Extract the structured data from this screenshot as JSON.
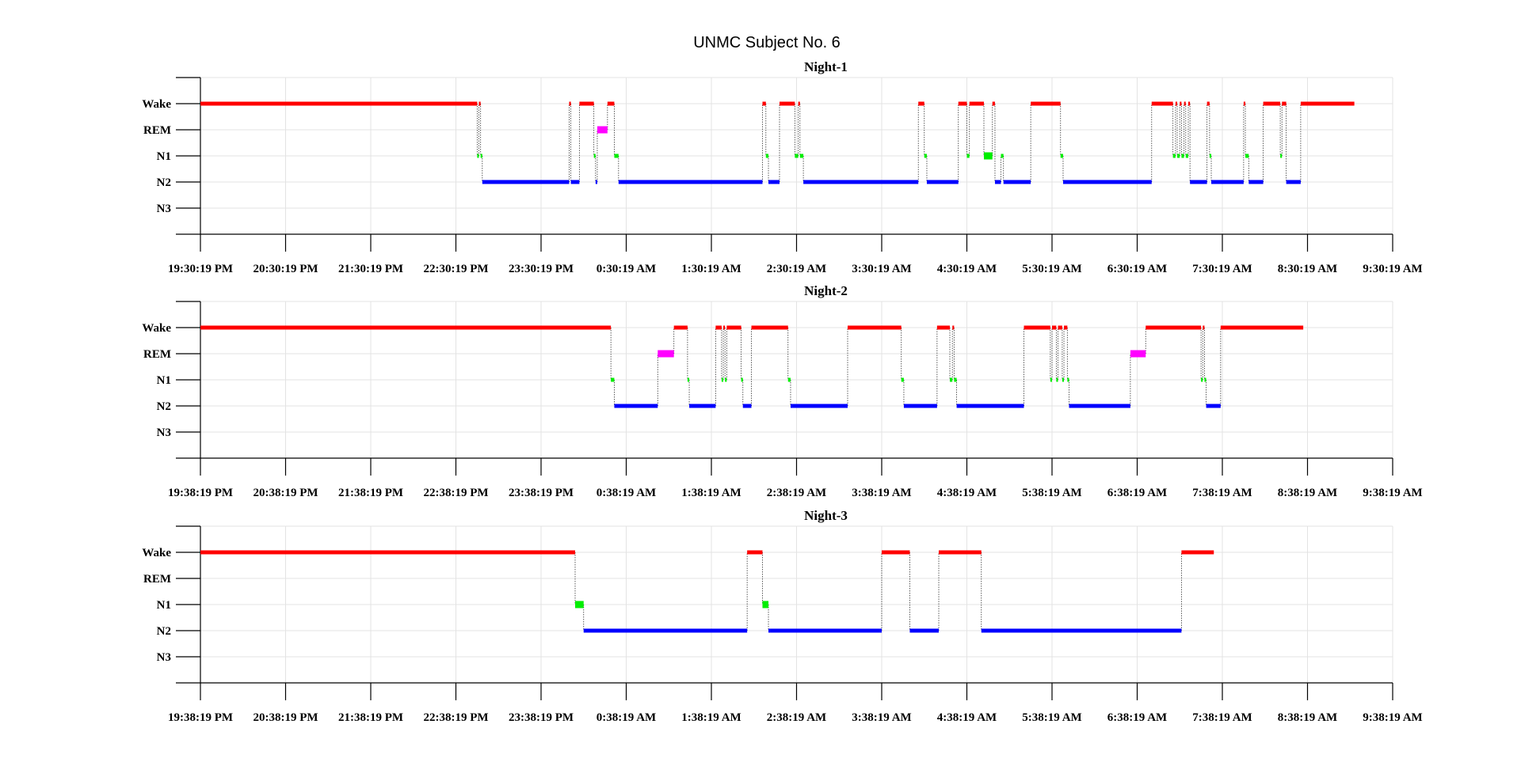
{
  "figure": {
    "title": "UNMC Subject No. 6"
  },
  "colors": {
    "Wake": "#ff0000",
    "REM": "#ff00ff",
    "N1": "#00ee00",
    "N2": "#0000ff",
    "N3": "#000000"
  },
  "chart_data": [
    {
      "type": "line",
      "title": "Night-1",
      "y_categories": [
        "Wake",
        "REM",
        "N1",
        "N2",
        "N3"
      ],
      "x_unit": "clock time (hours from 19:30:19 PM)",
      "xlim": [
        0,
        14
      ],
      "xticks": [
        "19:30:19 PM",
        "20:30:19 PM",
        "21:30:19 PM",
        "22:30:19 PM",
        "23:30:19 PM",
        "0:30:19 AM",
        "1:30:19 AM",
        "2:30:19 AM",
        "3:30:19 AM",
        "4:30:19 AM",
        "5:30:19 AM",
        "6:30:19 AM",
        "7:30:19 AM",
        "8:30:19 AM",
        "9:30:19 AM"
      ],
      "segments": [
        {
          "stage": "Wake",
          "start": 0,
          "end": 3.25
        },
        {
          "stage": "N1",
          "start": 3.25,
          "end": 3.27
        },
        {
          "stage": "Wake",
          "start": 3.27,
          "end": 3.29
        },
        {
          "stage": "N1",
          "start": 3.29,
          "end": 3.31
        },
        {
          "stage": "N2",
          "start": 3.31,
          "end": 4.33
        },
        {
          "stage": "Wake",
          "start": 4.33,
          "end": 4.35
        },
        {
          "stage": "N2",
          "start": 4.35,
          "end": 4.45
        },
        {
          "stage": "Wake",
          "start": 4.45,
          "end": 4.62
        },
        {
          "stage": "N1",
          "start": 4.62,
          "end": 4.64
        },
        {
          "stage": "N2",
          "start": 4.64,
          "end": 4.66
        },
        {
          "stage": "REM",
          "start": 4.66,
          "end": 4.78
        },
        {
          "stage": "Wake",
          "start": 4.78,
          "end": 4.86
        },
        {
          "stage": "N1",
          "start": 4.86,
          "end": 4.91
        },
        {
          "stage": "N2",
          "start": 4.91,
          "end": 6.6
        },
        {
          "stage": "Wake",
          "start": 6.6,
          "end": 6.64
        },
        {
          "stage": "N1",
          "start": 6.64,
          "end": 6.67
        },
        {
          "stage": "N2",
          "start": 6.67,
          "end": 6.8
        },
        {
          "stage": "Wake",
          "start": 6.8,
          "end": 6.98
        },
        {
          "stage": "N1",
          "start": 6.98,
          "end": 7.02
        },
        {
          "stage": "Wake",
          "start": 7.02,
          "end": 7.04
        },
        {
          "stage": "N1",
          "start": 7.04,
          "end": 7.08
        },
        {
          "stage": "N2",
          "start": 7.08,
          "end": 8.43
        },
        {
          "stage": "Wake",
          "start": 8.43,
          "end": 8.5
        },
        {
          "stage": "N1",
          "start": 8.5,
          "end": 8.53
        },
        {
          "stage": "N2",
          "start": 8.53,
          "end": 8.9
        },
        {
          "stage": "Wake",
          "start": 8.9,
          "end": 9.0
        },
        {
          "stage": "N1",
          "start": 9.0,
          "end": 9.03
        },
        {
          "stage": "Wake",
          "start": 9.03,
          "end": 9.2
        },
        {
          "stage": "N1",
          "start": 9.2,
          "end": 9.3
        },
        {
          "stage": "Wake",
          "start": 9.3,
          "end": 9.33
        },
        {
          "stage": "N2",
          "start": 9.33,
          "end": 9.4
        },
        {
          "stage": "N1",
          "start": 9.4,
          "end": 9.43
        },
        {
          "stage": "N2",
          "start": 9.43,
          "end": 9.75
        },
        {
          "stage": "Wake",
          "start": 9.75,
          "end": 10.1
        },
        {
          "stage": "N1",
          "start": 10.1,
          "end": 10.13
        },
        {
          "stage": "N2",
          "start": 10.13,
          "end": 11.17
        },
        {
          "stage": "Wake",
          "start": 11.17,
          "end": 11.42
        },
        {
          "stage": "N1",
          "start": 11.42,
          "end": 11.45
        },
        {
          "stage": "Wake",
          "start": 11.45,
          "end": 11.47
        },
        {
          "stage": "N1",
          "start": 11.47,
          "end": 11.5
        },
        {
          "stage": "Wake",
          "start": 11.5,
          "end": 11.52
        },
        {
          "stage": "N1",
          "start": 11.52,
          "end": 11.55
        },
        {
          "stage": "Wake",
          "start": 11.55,
          "end": 11.57
        },
        {
          "stage": "N1",
          "start": 11.57,
          "end": 11.6
        },
        {
          "stage": "Wake",
          "start": 11.6,
          "end": 11.62
        },
        {
          "stage": "N2",
          "start": 11.62,
          "end": 11.82
        },
        {
          "stage": "Wake",
          "start": 11.82,
          "end": 11.85
        },
        {
          "stage": "N1",
          "start": 11.85,
          "end": 11.87
        },
        {
          "stage": "N2",
          "start": 11.87,
          "end": 12.25
        },
        {
          "stage": "Wake",
          "start": 12.25,
          "end": 12.27
        },
        {
          "stage": "N1",
          "start": 12.27,
          "end": 12.31
        },
        {
          "stage": "N2",
          "start": 12.31,
          "end": 12.48
        },
        {
          "stage": "Wake",
          "start": 12.48,
          "end": 12.68
        },
        {
          "stage": "N1",
          "start": 12.68,
          "end": 12.7
        },
        {
          "stage": "Wake",
          "start": 12.7,
          "end": 12.75
        },
        {
          "stage": "N2",
          "start": 12.75,
          "end": 12.92
        },
        {
          "stage": "Wake",
          "start": 12.92,
          "end": 13.55
        }
      ]
    },
    {
      "type": "line",
      "title": "Night-2",
      "y_categories": [
        "Wake",
        "REM",
        "N1",
        "N2",
        "N3"
      ],
      "x_unit": "clock time (hours from 19:38:19 PM)",
      "xlim": [
        0,
        14
      ],
      "xticks": [
        "19:38:19 PM",
        "20:38:19 PM",
        "21:38:19 PM",
        "22:38:19 PM",
        "23:38:19 PM",
        "0:38:19 AM",
        "1:38:19 AM",
        "2:38:19 AM",
        "3:38:19 AM",
        "4:38:19 AM",
        "5:38:19 AM",
        "6:38:19 AM",
        "7:38:19 AM",
        "8:38:19 AM",
        "9:38:19 AM"
      ],
      "segments": [
        {
          "stage": "Wake",
          "start": 0,
          "end": 4.82
        },
        {
          "stage": "N1",
          "start": 4.82,
          "end": 4.86
        },
        {
          "stage": "N2",
          "start": 4.86,
          "end": 5.37
        },
        {
          "stage": "REM",
          "start": 5.37,
          "end": 5.56
        },
        {
          "stage": "Wake",
          "start": 5.56,
          "end": 5.72
        },
        {
          "stage": "N1",
          "start": 5.72,
          "end": 5.74
        },
        {
          "stage": "N2",
          "start": 5.74,
          "end": 6.05
        },
        {
          "stage": "Wake",
          "start": 6.05,
          "end": 6.12
        },
        {
          "stage": "N1",
          "start": 6.12,
          "end": 6.14
        },
        {
          "stage": "Wake",
          "start": 6.14,
          "end": 6.16
        },
        {
          "stage": "N1",
          "start": 6.16,
          "end": 6.18
        },
        {
          "stage": "Wake",
          "start": 6.18,
          "end": 6.35
        },
        {
          "stage": "N1",
          "start": 6.35,
          "end": 6.37
        },
        {
          "stage": "N2",
          "start": 6.37,
          "end": 6.47
        },
        {
          "stage": "Wake",
          "start": 6.47,
          "end": 6.9
        },
        {
          "stage": "N1",
          "start": 6.9,
          "end": 6.93
        },
        {
          "stage": "N2",
          "start": 6.93,
          "end": 7.6
        },
        {
          "stage": "Wake",
          "start": 7.6,
          "end": 8.23
        },
        {
          "stage": "N1",
          "start": 8.23,
          "end": 8.26
        },
        {
          "stage": "N2",
          "start": 8.26,
          "end": 8.65
        },
        {
          "stage": "Wake",
          "start": 8.65,
          "end": 8.8
        },
        {
          "stage": "N1",
          "start": 8.8,
          "end": 8.83
        },
        {
          "stage": "Wake",
          "start": 8.83,
          "end": 8.85
        },
        {
          "stage": "N1",
          "start": 8.85,
          "end": 8.88
        },
        {
          "stage": "N2",
          "start": 8.88,
          "end": 9.67
        },
        {
          "stage": "Wake",
          "start": 9.67,
          "end": 9.98
        },
        {
          "stage": "N1",
          "start": 9.98,
          "end": 10.0
        },
        {
          "stage": "Wake",
          "start": 10.0,
          "end": 10.05
        },
        {
          "stage": "N1",
          "start": 10.05,
          "end": 10.07
        },
        {
          "stage": "Wake",
          "start": 10.07,
          "end": 10.12
        },
        {
          "stage": "N1",
          "start": 10.12,
          "end": 10.14
        },
        {
          "stage": "Wake",
          "start": 10.14,
          "end": 10.18
        },
        {
          "stage": "N1",
          "start": 10.18,
          "end": 10.2
        },
        {
          "stage": "N2",
          "start": 10.2,
          "end": 10.92
        },
        {
          "stage": "REM",
          "start": 10.92,
          "end": 11.1
        },
        {
          "stage": "Wake",
          "start": 11.1,
          "end": 11.75
        },
        {
          "stage": "N1",
          "start": 11.75,
          "end": 11.77
        },
        {
          "stage": "Wake",
          "start": 11.77,
          "end": 11.79
        },
        {
          "stage": "N1",
          "start": 11.79,
          "end": 11.81
        },
        {
          "stage": "N2",
          "start": 11.81,
          "end": 11.98
        },
        {
          "stage": "Wake",
          "start": 11.98,
          "end": 12.95
        }
      ]
    },
    {
      "type": "line",
      "title": "Night-3",
      "y_categories": [
        "Wake",
        "REM",
        "N1",
        "N2",
        "N3"
      ],
      "x_unit": "clock time (hours from 19:38:19 PM)",
      "xlim": [
        0,
        14
      ],
      "xticks": [
        "19:38:19 PM",
        "20:38:19 PM",
        "21:38:19 PM",
        "22:38:19 PM",
        "23:38:19 PM",
        "0:38:19 AM",
        "1:38:19 AM",
        "2:38:19 AM",
        "3:38:19 AM",
        "4:38:19 AM",
        "5:38:19 AM",
        "6:38:19 AM",
        "7:38:19 AM",
        "8:38:19 AM",
        "9:38:19 AM"
      ],
      "segments": [
        {
          "stage": "Wake",
          "start": 0,
          "end": 4.4
        },
        {
          "stage": "N1",
          "start": 4.4,
          "end": 4.5
        },
        {
          "stage": "N2",
          "start": 4.5,
          "end": 6.42
        },
        {
          "stage": "Wake",
          "start": 6.42,
          "end": 6.6
        },
        {
          "stage": "N1",
          "start": 6.6,
          "end": 6.67
        },
        {
          "stage": "N2",
          "start": 6.67,
          "end": 8.0
        },
        {
          "stage": "Wake",
          "start": 8.0,
          "end": 8.33
        },
        {
          "stage": "N2",
          "start": 8.33,
          "end": 8.67
        },
        {
          "stage": "Wake",
          "start": 8.67,
          "end": 9.17
        },
        {
          "stage": "N2",
          "start": 9.17,
          "end": 11.52
        },
        {
          "stage": "Wake",
          "start": 11.52,
          "end": 11.9
        }
      ]
    }
  ]
}
